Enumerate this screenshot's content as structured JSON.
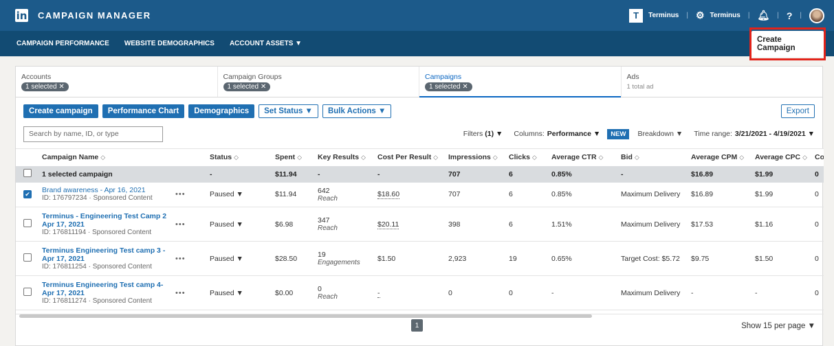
{
  "app": {
    "logo": "in",
    "title": "CAMPAIGN MANAGER",
    "account_logo": "T",
    "account_name": "Terminus",
    "settings_label": "Terminus"
  },
  "nav": {
    "items": [
      "CAMPAIGN PERFORMANCE",
      "WEBSITE DEMOGRAPHICS",
      "ACCOUNT ASSETS ▼"
    ],
    "create_campaign": "Create Campaign"
  },
  "levels": [
    {
      "title": "Accounts",
      "pill": "1 selected ✕"
    },
    {
      "title": "Campaign Groups",
      "pill": "1 selected ✕"
    },
    {
      "title": "Campaigns",
      "pill": "1 selected ✕"
    },
    {
      "title": "Ads",
      "sub": "1 total ad"
    }
  ],
  "toolbar": {
    "create_campaign": "Create campaign",
    "performance_chart": "Performance Chart",
    "demographics": "Demographics",
    "set_status": "Set Status ▼",
    "bulk_actions": "Bulk Actions ▼",
    "export": "Export"
  },
  "filters": {
    "search_placeholder": "Search by name, ID, or type",
    "filters_label": "Filters",
    "filters_count": "(1) ▼",
    "columns_label": "Columns:",
    "columns_value": "Performance ▼",
    "new_badge": "NEW",
    "breakdown": "Breakdown ▼",
    "time_label": "Time range:",
    "time_value": "3/21/2021 - 4/19/2021 ▼"
  },
  "table": {
    "headers": [
      "Campaign Name",
      "Status",
      "Spent",
      "Key Results",
      "Cost Per Result",
      "Impressions",
      "Clicks",
      "Average CTR",
      "Bid",
      "Average CPM",
      "Average CPC",
      "Cor"
    ],
    "sort_glyph": "◇",
    "summary": {
      "name": "1 selected campaign",
      "status": "-",
      "spent": "$11.94",
      "key_results": "-",
      "cpr": "-",
      "impressions": "707",
      "clicks": "6",
      "ctr": "0.85%",
      "bid": "-",
      "cpm": "$16.89",
      "cpc": "$1.99",
      "conv": "0"
    },
    "rows": [
      {
        "name": "Brand awareness - Apr 16, 2021",
        "id": "ID: 176797234 · Sponsored Content",
        "checked": "✔",
        "menu": "•••",
        "status": "Paused ▼",
        "spent": "$11.94",
        "kr_value": "642",
        "kr_type": "Reach",
        "cpr": "$18.60",
        "impressions": "707",
        "clicks": "6",
        "ctr": "0.85%",
        "bid": "Maximum Delivery",
        "cpm": "$16.89",
        "cpc": "$1.99",
        "conv": "0"
      },
      {
        "name": "Terminus - Engineering Test Camp 2 Apr 17, 2021",
        "id": "ID: 176811194 · Sponsored Content",
        "checked": "",
        "menu": "•••",
        "status": "Paused ▼",
        "spent": "$6.98",
        "kr_value": "347",
        "kr_type": "Reach",
        "cpr": "$20.11",
        "impressions": "398",
        "clicks": "6",
        "ctr": "1.51%",
        "bid": "Maximum Delivery",
        "cpm": "$17.53",
        "cpc": "$1.16",
        "conv": "0"
      },
      {
        "name": "Terminus Engineering Test camp 3 - Apr 17, 2021",
        "id": "ID: 176811254 · Sponsored Content",
        "checked": "",
        "menu": "•••",
        "status": "Paused ▼",
        "spent": "$28.50",
        "kr_value": "19",
        "kr_type": "Engagements",
        "cpr": "$1.50",
        "impressions": "2,923",
        "clicks": "19",
        "ctr": "0.65%",
        "bid": "Target Cost: $5.72",
        "cpm": "$9.75",
        "cpc": "$1.50",
        "conv": "0"
      },
      {
        "name": "Terminus Engineering Test camp 4- Apr 17, 2021",
        "id": "ID: 176811274 · Sponsored Content",
        "checked": "",
        "menu": "•••",
        "status": "Paused ▼",
        "spent": "$0.00",
        "kr_value": "0",
        "kr_type": "Reach",
        "cpr": "-",
        "impressions": "0",
        "clicks": "0",
        "ctr": "-",
        "bid": "Maximum Delivery",
        "cpm": "-",
        "cpc": "-",
        "conv": "0"
      }
    ]
  },
  "pagination": {
    "current_page": "1",
    "per_page": "Show 15 per page ▼"
  }
}
